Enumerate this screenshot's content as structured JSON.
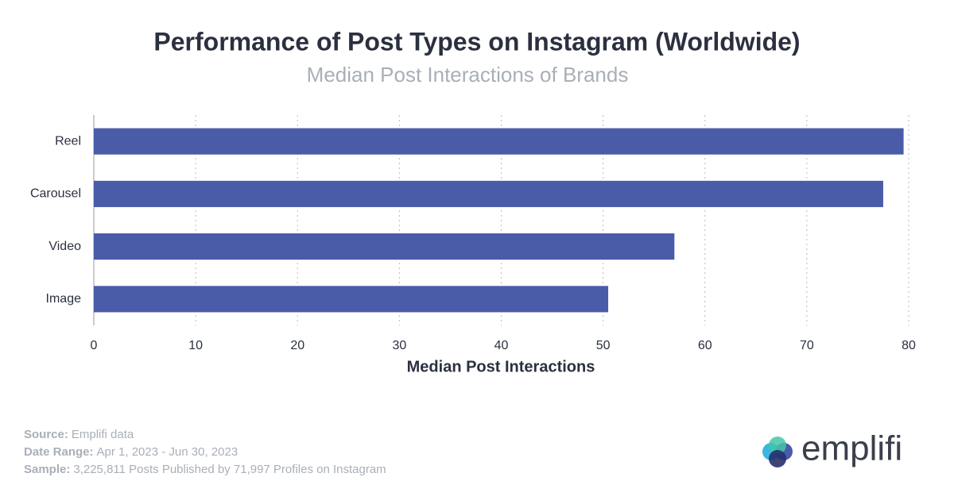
{
  "chart_data": {
    "type": "hbar",
    "title": "Performance of Post Types on Instagram (Worldwide)",
    "subtitle": "Median Post Interactions of Brands",
    "x_label": "Median Post Interactions",
    "categories": [
      "Reel",
      "Carousel",
      "Video",
      "Image"
    ],
    "values": [
      79.5,
      77.5,
      57,
      50.5
    ],
    "color": "#4a5ba8",
    "xlim": [
      0,
      80
    ],
    "xticks": [
      0,
      10,
      20,
      30,
      40,
      50,
      60,
      70,
      80
    ],
    "grid": true
  },
  "footer": [
    {
      "label": "Source:",
      "text": "Emplifi data"
    },
    {
      "label": "Date Range:",
      "text": "Apr 1, 2023 - Jun 30, 2023"
    },
    {
      "label": "Sample:",
      "text": "3,225,811 Posts Published by 71,997 Profiles on Instagram"
    }
  ],
  "logo": "emplifi"
}
